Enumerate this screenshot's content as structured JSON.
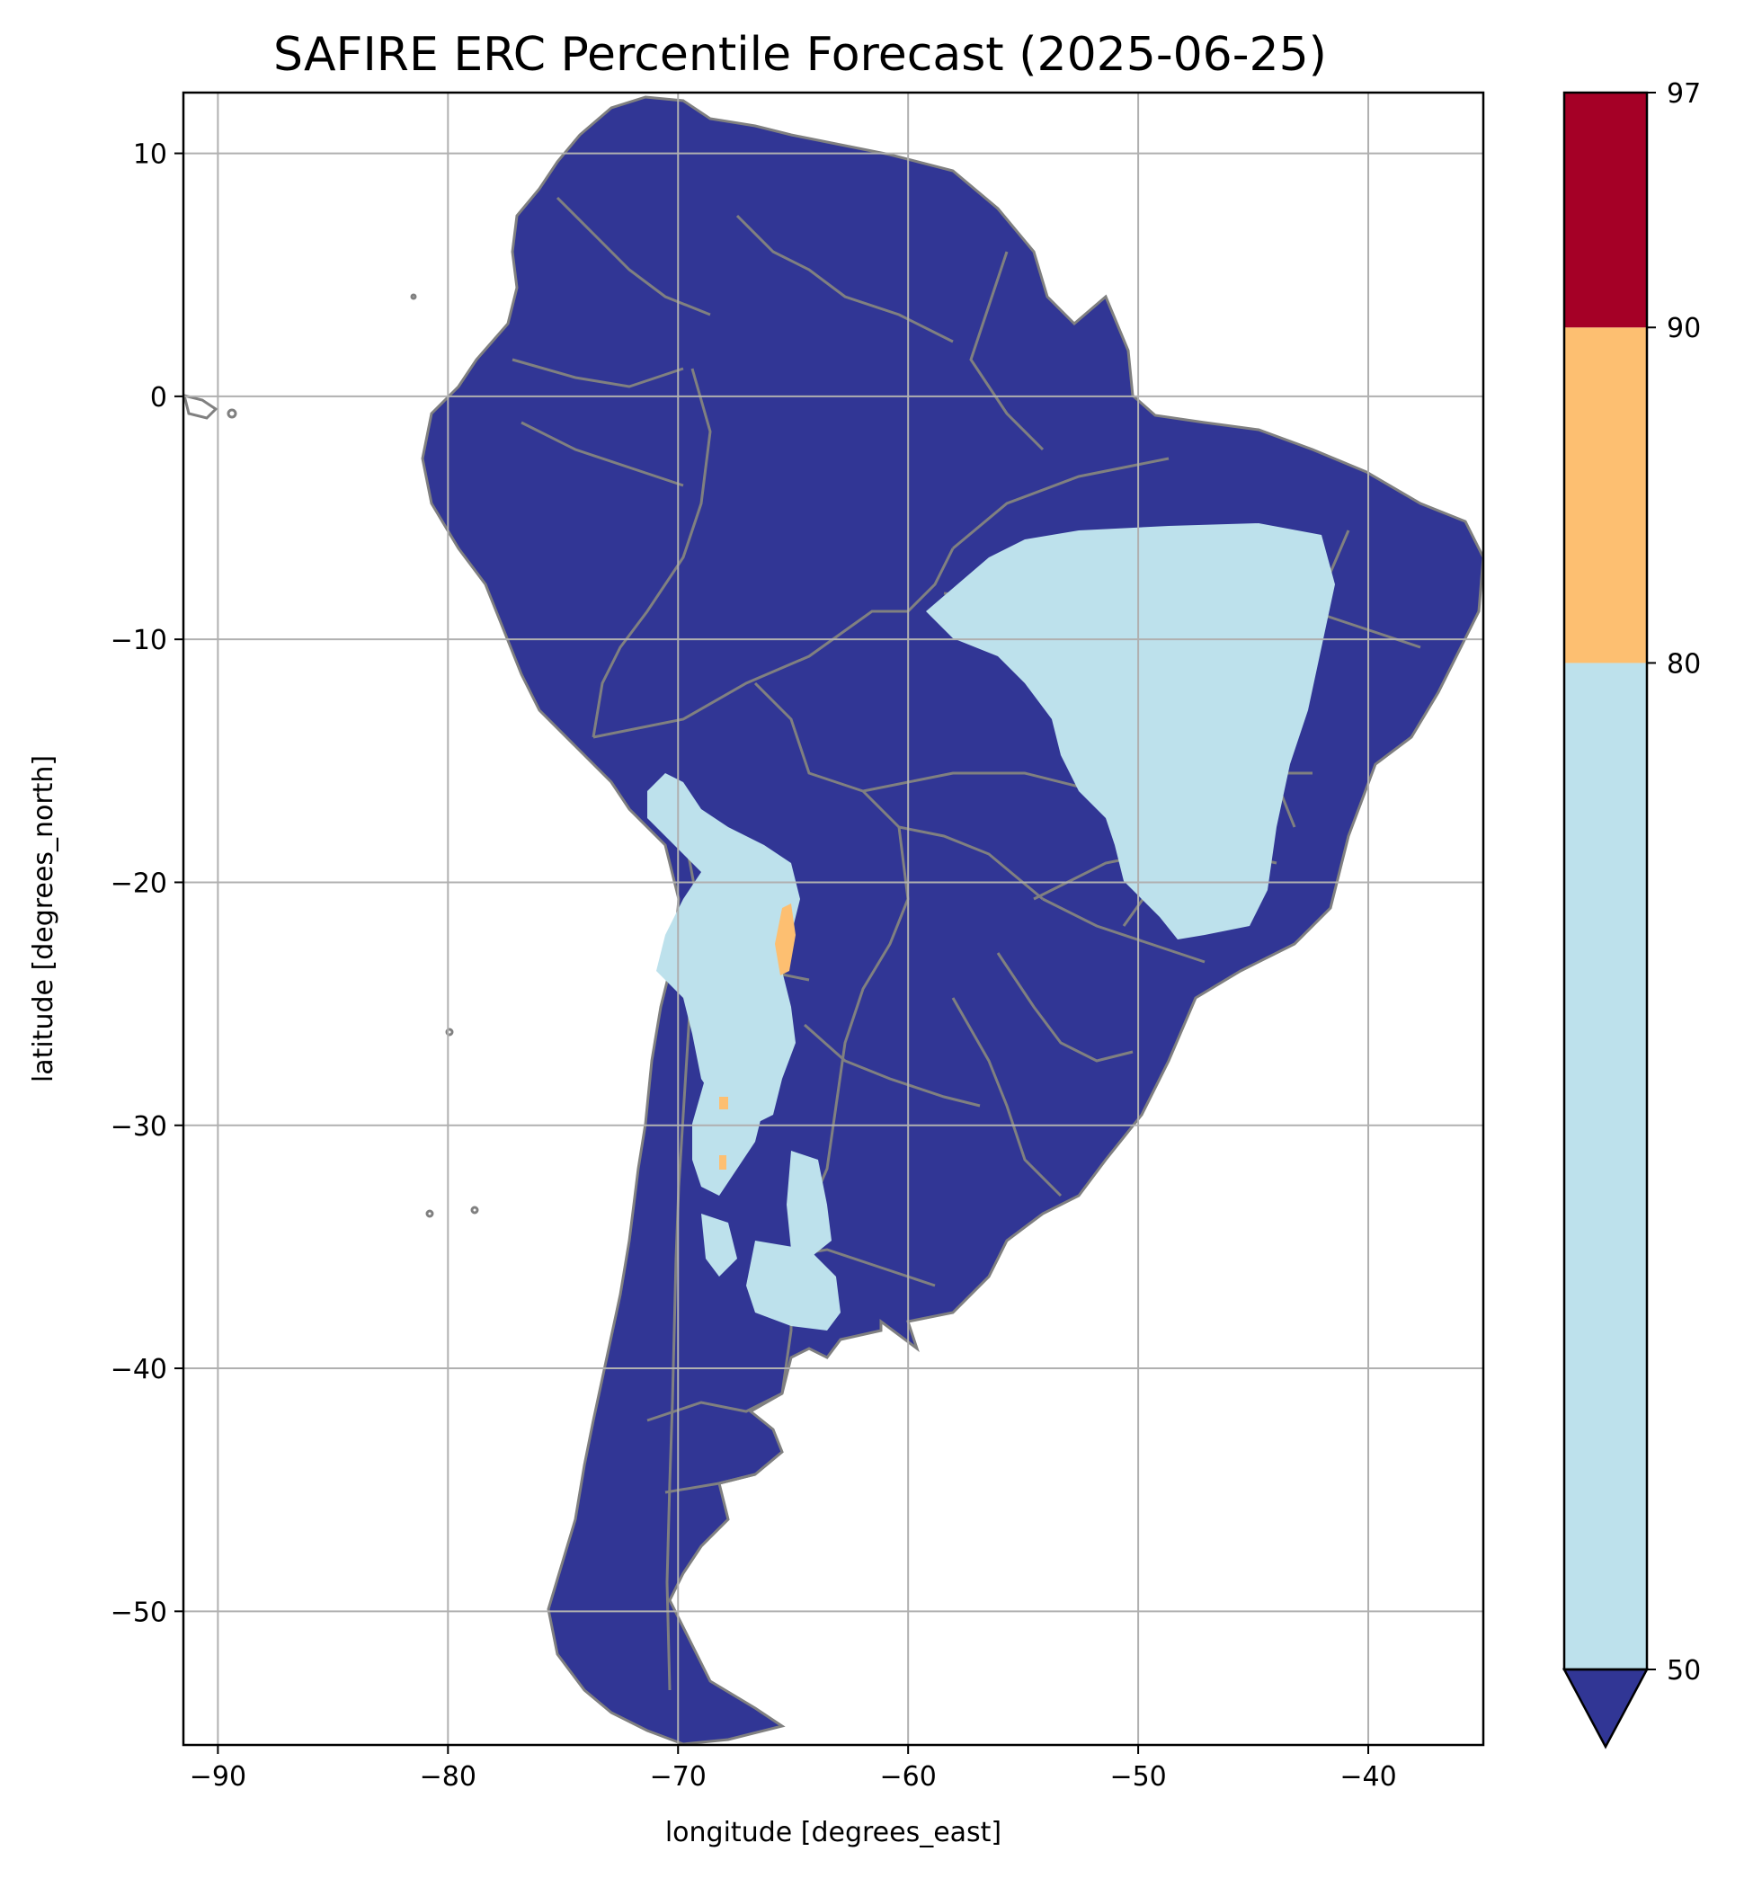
{
  "title": "SAFIRE ERC Percentile Forecast (2025-06-25)",
  "xlabel": "longitude [degrees_east]",
  "ylabel": "latitude [degrees_north]",
  "xaxis": {
    "range": [
      -91.5,
      -35
    ],
    "ticks": [
      -90,
      -80,
      -70,
      -60,
      -50,
      -40
    ]
  },
  "yaxis": {
    "range": [
      -55.5,
      12.5
    ],
    "ticks": [
      10,
      0,
      -10,
      -20,
      -30,
      -40,
      -50
    ]
  },
  "grid": true,
  "colorbar": {
    "levels": [
      50,
      80,
      90,
      97
    ],
    "colors": {
      "below_50": "#313695",
      "50_80": "#bde1ec",
      "80_90": "#fdbf71",
      "90_97": "#a50026"
    },
    "extend": "min"
  },
  "map": {
    "land_color": "#313695",
    "border_color": "#808080",
    "region": "South America"
  }
}
